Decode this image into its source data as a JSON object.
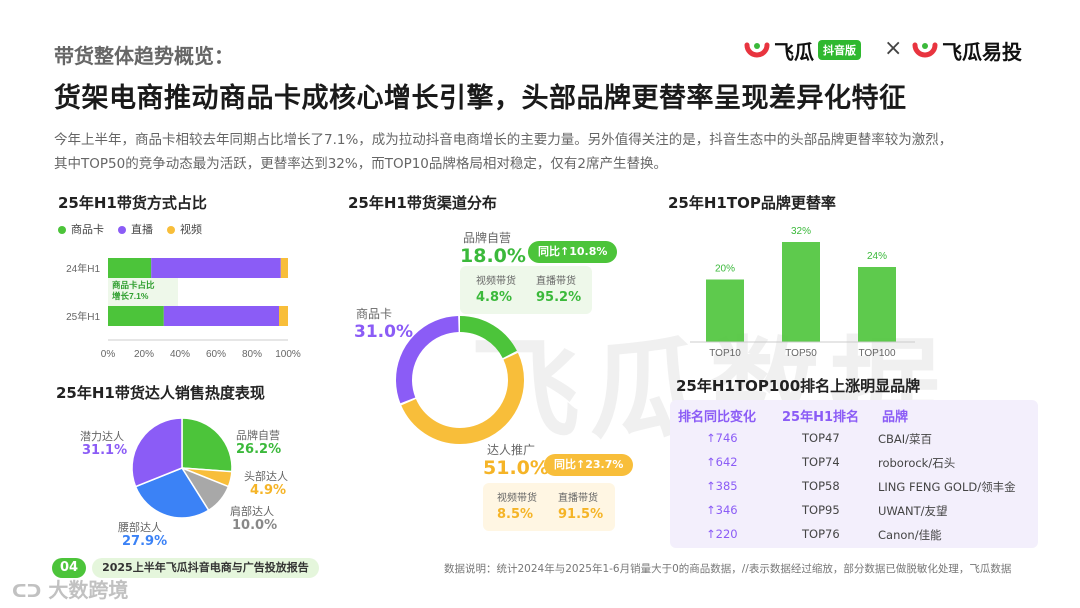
{
  "header": {
    "section_title": "带货整体趋势概览：",
    "headline": "货架电商推动商品卡成核心增长引擎，头部品牌更替率呈现差异化特征",
    "intro_line1": "今年上半年，商品卡相较去年同期占比增长了7.1%，成为拉动抖音电商增长的主要力量。另外值得关注的是，抖音生态中的头部品牌更替率较为激烈，",
    "intro_line2": "其中TOP50的竞争动态最为活跃，更替率达到32%，而TOP10品牌格局相对稳定，仅有2席产生替换。",
    "logo1_text": "飞瓜",
    "logo1_badge": "抖音版",
    "times": "×",
    "logo2_text": "飞瓜易投"
  },
  "colors": {
    "green": "#4cc43a",
    "purple": "#8b5cf6",
    "orange": "#f8be3a",
    "blue": "#3b82f6",
    "gray": "#a8a8a8"
  },
  "chart_data": [
    {
      "type": "bar",
      "orientation": "horizontal-stacked",
      "title": "25年H1带货方式占比",
      "legend": [
        "商品卡",
        "直播",
        "视频"
      ],
      "categories": [
        "24年H1",
        "25年H1"
      ],
      "series": [
        {
          "name": "商品卡",
          "values": [
            24,
            31
          ]
        },
        {
          "name": "直播",
          "values": [
            72,
            64
          ]
        },
        {
          "name": "视频",
          "values": [
            4,
            5
          ]
        }
      ],
      "xticks": [
        "0%",
        "20%",
        "40%",
        "60%",
        "80%",
        "100%"
      ],
      "xlim": [
        0,
        100
      ],
      "annotation_line1": "商品卡占比",
      "annotation_line2": "增长7.1%"
    },
    {
      "type": "pie",
      "variant": "donut",
      "title": "25年H1带货渠道分布",
      "slices": [
        {
          "name": "品牌自营",
          "value": 18.0,
          "label": "18.0%"
        },
        {
          "name": "达人推广",
          "value": 51.0,
          "label": "51.0%"
        },
        {
          "name": "商品卡",
          "value": 31.0,
          "label": "31.0%"
        }
      ],
      "brand": {
        "growth": "同比↑10.8%",
        "video_label": "视频带货",
        "video_value": "4.8%",
        "live_label": "直播带货",
        "live_value": "95.2%"
      },
      "talent": {
        "growth": "同比↑23.7%",
        "video_label": "视频带货",
        "video_value": "8.5%",
        "live_label": "直播带货",
        "live_value": "91.5%"
      }
    },
    {
      "type": "bar",
      "title": "25年H1TOP品牌更替率",
      "categories": [
        "TOP10",
        "TOP50",
        "TOP100"
      ],
      "values": [
        20,
        32,
        24
      ],
      "labels": [
        "20%",
        "32%",
        "24%"
      ],
      "ylim": [
        0,
        32
      ]
    },
    {
      "type": "pie",
      "title": "25年H1带货达人销售热度表现",
      "slices": [
        {
          "name": "品牌自营",
          "value": 26.2,
          "label": "26.2%"
        },
        {
          "name": "头部达人",
          "value": 4.9,
          "label": "4.9%"
        },
        {
          "name": "肩部达人",
          "value": 10.0,
          "label": "10.0%"
        },
        {
          "name": "腰部达人",
          "value": 27.9,
          "label": "27.9%"
        },
        {
          "name": "潜力达人",
          "value": 31.1,
          "label": "31.1%"
        }
      ]
    },
    {
      "type": "table",
      "title": "25年H1TOP100排名上涨明显品牌",
      "headers": [
        "排名同比变化",
        "25年H1排名",
        "品牌"
      ],
      "rows": [
        [
          "↑746",
          "TOP47",
          "CBAI/菜百"
        ],
        [
          "↑642",
          "TOP74",
          "roborock/石头"
        ],
        [
          "↑385",
          "TOP58",
          "LING FENG GOLD/领丰金"
        ],
        [
          "↑346",
          "TOP95",
          "UWANT/友望"
        ],
        [
          "↑220",
          "TOP76",
          "Canon/佳能"
        ]
      ]
    }
  ],
  "footer": {
    "page_no": "04",
    "report_title": "2025上半年飞瓜抖音电商与广告投放报告",
    "note": "数据说明：统计2024年与2025年1-6月销量大于0的商品数据，//表示数据经过缩放，部分数据已做脱敏化处理，飞瓜数据",
    "watermark_brand": "大数跨境"
  },
  "watermark": "飞瓜数据"
}
